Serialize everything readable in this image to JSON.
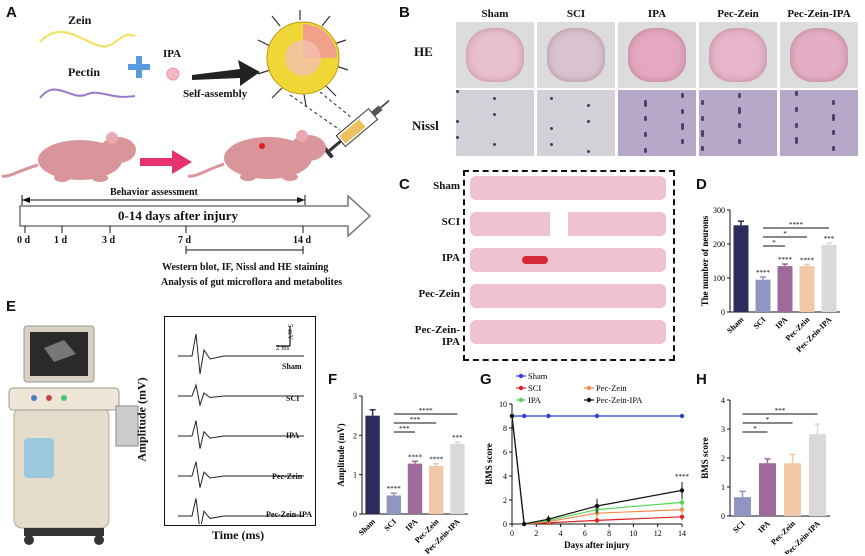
{
  "panels": {
    "A": {
      "label": "A",
      "zein": "Zein",
      "pectin": "Pectin",
      "ipa": "IPA",
      "self_assembly": "Self-assembly",
      "behavior": "Behavior assessment",
      "timeline": "0-14 days after injury",
      "days": [
        "0 d",
        "1 d",
        "3 d",
        "7 d",
        "14 d"
      ],
      "analysis_line1": "Western blot, IF, Nissl and HE staining",
      "analysis_line2": "Analysis of gut microflora and metabolites"
    },
    "B": {
      "label": "B",
      "groups": [
        "Sham",
        "SCI",
        "IPA",
        "Pec-Zein",
        "Pec-Zein-IPA"
      ],
      "rows": [
        "HE",
        "Nissl"
      ]
    },
    "C": {
      "label": "C",
      "groups": [
        "Sham",
        "SCI",
        "IPA",
        "Pec-Zein",
        "Pec-Zein-IPA"
      ]
    },
    "D": {
      "label": "D"
    },
    "E": {
      "label": "E",
      "ylabel": "Amplitude (mV)",
      "xlabel": "Time (ms)",
      "scale_v": "5 mV",
      "scale_t": "2 ms",
      "traces": [
        "Sham",
        "SCI",
        "IPA",
        "Pec-Zein",
        "Pec-Zein-IPA"
      ]
    },
    "F": {
      "label": "F"
    },
    "G": {
      "label": "G"
    },
    "H": {
      "label": "H"
    }
  },
  "colors": {
    "sham": "#2b2b5c",
    "sci": "#8f96c2",
    "ipa": "#9e6a9a",
    "pec_zein": "#f2c9a8",
    "pec_zein_ipa": "#d9d9d9",
    "zein_curve": "#f2e264",
    "pectin_curve": "#9a7ac8",
    "plus": "#5b9be0",
    "arrow_pink": "#e8326e"
  },
  "chart_data": [
    {
      "id": "D",
      "type": "bar",
      "title": "",
      "ylabel": "The number of neurons",
      "xlabel": "",
      "categories": [
        "Sham",
        "SCI",
        "IPA",
        "Pec-Zein",
        "Pec-Zein-IPA"
      ],
      "values": [
        255,
        95,
        135,
        135,
        197
      ],
      "errors": [
        12,
        8,
        6,
        5,
        6
      ],
      "ylim": [
        0,
        300
      ],
      "yticks": [
        0,
        100,
        200,
        300
      ],
      "bar_sig": [
        "",
        "****",
        "****",
        "****",
        "***"
      ],
      "comparisons": [
        {
          "from": "SCI",
          "to": "IPA",
          "text": "*"
        },
        {
          "from": "SCI",
          "to": "Pec-Zein",
          "text": "*"
        },
        {
          "from": "SCI",
          "to": "Pec-Zein-IPA",
          "text": "****"
        }
      ]
    },
    {
      "id": "F",
      "type": "bar",
      "title": "",
      "ylabel": "Amplitude (mV)",
      "xlabel": "",
      "categories": [
        "Sham",
        "SCI",
        "IPA",
        "Pec-Zein",
        "Pec-Zein-IPA"
      ],
      "values": [
        2.5,
        0.47,
        1.28,
        1.22,
        1.78
      ],
      "errors": [
        0.15,
        0.06,
        0.06,
        0.06,
        0.05
      ],
      "ylim": [
        0,
        3
      ],
      "yticks": [
        0,
        1,
        2,
        3
      ],
      "bar_sig": [
        "",
        "****",
        "****",
        "****",
        "***"
      ],
      "comparisons": [
        {
          "from": "SCI",
          "to": "IPA",
          "text": "***"
        },
        {
          "from": "SCI",
          "to": "Pec-Zein",
          "text": "***"
        },
        {
          "from": "SCI",
          "to": "Pec-Zein-IPA",
          "text": "****"
        }
      ]
    },
    {
      "id": "G",
      "type": "line",
      "title": "",
      "ylabel": "BMS score",
      "xlabel": "Days after injury",
      "x": [
        0,
        1,
        3,
        7,
        14
      ],
      "xticks": [
        0,
        2,
        4,
        6,
        8,
        10,
        12,
        14
      ],
      "yticks": [
        0,
        2,
        4,
        6,
        8,
        10
      ],
      "xlim": [
        0,
        14
      ],
      "ylim": [
        0,
        10
      ],
      "end_sig": "****",
      "series": [
        {
          "name": "Sham",
          "color": "#2f3ed6",
          "marker": "circle",
          "values": [
            9,
            9,
            9,
            9,
            9
          ],
          "errors": [
            0,
            0,
            0,
            0,
            0
          ]
        },
        {
          "name": "SCI",
          "color": "#e02020",
          "marker": "square",
          "values": [
            9,
            0,
            0.1,
            0.3,
            0.6
          ],
          "errors": [
            0,
            0,
            0.1,
            0.2,
            0.3
          ]
        },
        {
          "name": "Pec-Zein",
          "color": "#f08a50",
          "marker": "triangle-down",
          "values": [
            9,
            0,
            0.2,
            0.9,
            1.2
          ],
          "errors": [
            0,
            0,
            0.2,
            0.4,
            0.5
          ]
        },
        {
          "name": "IPA",
          "color": "#55d65a",
          "marker": "triangle-up",
          "values": [
            9,
            0,
            0.3,
            1.2,
            1.8
          ],
          "errors": [
            0,
            0,
            0.2,
            0.5,
            0.6
          ]
        },
        {
          "name": "Pec-Zein-IPA",
          "color": "#111111",
          "marker": "diamond",
          "values": [
            9,
            0,
            0.4,
            1.5,
            2.8
          ],
          "errors": [
            0,
            0,
            0.3,
            0.6,
            0.7
          ]
        }
      ]
    },
    {
      "id": "H",
      "type": "bar",
      "title": "",
      "ylabel": "BMS score",
      "xlabel": "",
      "categories": [
        "SCI",
        "IPA",
        "Pec-Zein",
        "Pec-Zein-IPA"
      ],
      "values": [
        0.65,
        1.82,
        1.82,
        2.82
      ],
      "errors": [
        0.2,
        0.15,
        0.3,
        0.35
      ],
      "ylim": [
        0,
        4
      ],
      "yticks": [
        0,
        1,
        2,
        3,
        4
      ],
      "comparisons": [
        {
          "from": "SCI",
          "to": "IPA",
          "text": "*"
        },
        {
          "from": "SCI",
          "to": "Pec-Zein",
          "text": "*"
        },
        {
          "from": "SCI",
          "to": "Pec-Zein-IPA",
          "text": "***"
        }
      ]
    }
  ]
}
